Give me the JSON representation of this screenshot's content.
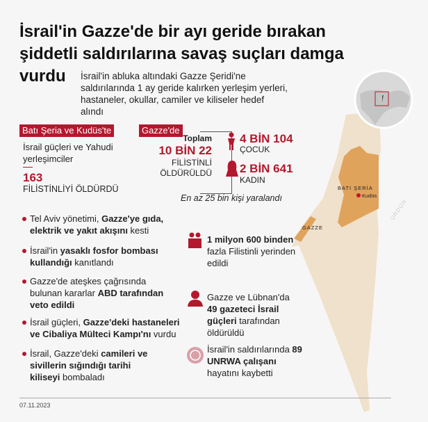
{
  "title": "İsrail'in Gazze'de bir ayı geride bırakan şiddetli saldırılarına savaş suçları damga vurdu",
  "subtitle": "İsrail'in abluka altındaki Gazze Şeridi'ne saldırılarında 1 ay geride kalırken yerleşim yerleri, hastaneler, okullar, camiler ve kiliseler hedef alındı",
  "west_bank": {
    "tag": "Batı Şeria ve Kudüs'te",
    "actor": "İsrail güçleri ve Yahudi yerleşimciler",
    "count": "163",
    "caption": "FİLİSTİNLİYİ ÖLDÜRDÜ"
  },
  "gaza": {
    "tag": "Gazze'de",
    "total_label": "Toplam",
    "total": "10 BİN 22",
    "total_caption_1": "FİLİSTİNLİ",
    "total_caption_2": "ÖLDÜRÜLDÜ",
    "children": "4 BİN 104",
    "children_label": "ÇOCUK",
    "women": "2 BİN 641",
    "women_label": "KADIN",
    "injured": "En az 25 bin kişi yaralandı"
  },
  "bullets": [
    {
      "a": "Tel Aviv yönetimi, ",
      "b": "Gazze'ye gıda, elektrik ve yakıt akışını",
      "c": " kesti"
    },
    {
      "a": "İsrail'in ",
      "b": "yasaklı fosfor bombası kullandığı",
      "c": " kanıtlandı"
    },
    {
      "a": "Gazze'de ateşkes çağrısında bulunan kararlar ",
      "b": "ABD tarafından veto edildi",
      "c": ""
    },
    {
      "a": "İsrail güçleri, ",
      "b": "Gazze'deki hastaneleri ve Cibaliya Mülteci Kampı'nı",
      "c": " vurdu"
    },
    {
      "a": "İsrail, Gazze'deki ",
      "b": "camileri ve sivillerin sığındığı tarihi kiliseyi",
      "c": " bombaladı"
    }
  ],
  "facts": [
    {
      "icon": "displaced-family-icon",
      "a": "",
      "b": "1 milyon 600 binden",
      "c": " fazla Filistinli yerinden edildi"
    },
    {
      "icon": "journalist-icon",
      "a": "Gazze ve Lübnan'da ",
      "b": "49 gazeteci İsrail güçleri",
      "c": " tarafından öldürüldü"
    },
    {
      "icon": "un-emblem-icon",
      "a": "İsrail'in saldırılarında ",
      "b": "89 UNRWA çalışanı",
      "c": " hayatını kaybetti"
    }
  ],
  "map": {
    "west_bank": "BATI ŞERİA",
    "jerusalem": "Kudüs",
    "gaza": "GAZZE",
    "jordan": "ÜRDÜN"
  },
  "date": "07.11.2023",
  "logo": "AA",
  "colors": {
    "accent": "#b3182e",
    "territory": "#e0a35c",
    "land": "#efe1cb"
  }
}
